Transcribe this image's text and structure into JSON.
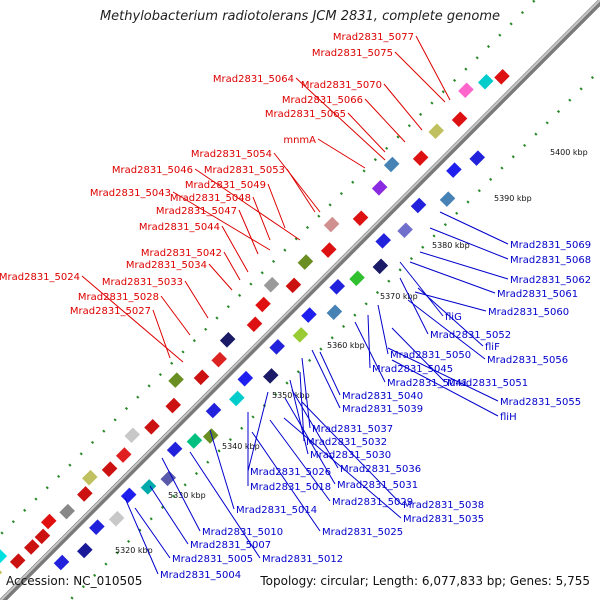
{
  "title": "Methylobacterium radiotolerans JCM 2831, complete genome",
  "accession": "Accession: NC_010505",
  "summary": "Topology: circular; Length: 6,077,833 bp; Genes: 5,755",
  "colors": {
    "forward_label": "#dd0000",
    "reverse_label": "#0000cc",
    "backbone": "#909090",
    "tick": "#228822"
  },
  "kbp_ticks": [
    "5320 kbp",
    "5330 kbp",
    "5340 kbp",
    "5350 kbp",
    "5360 kbp",
    "5370 kbp",
    "5380 kbp",
    "5390 kbp",
    "5400 kbp"
  ],
  "forward_genes": [
    "Mrad2831_5077",
    "Mrad2831_5075",
    "Mrad2831_5064",
    "Mrad2831_5070",
    "Mrad2831_5066",
    "Mrad2831_5065",
    "mnmA",
    "Mrad2831_5054",
    "Mrad2831_5046",
    "Mrad2831_5053",
    "Mrad2831_5049",
    "Mrad2831_5043",
    "Mrad2831_5048",
    "Mrad2831_5047",
    "Mrad2831_5044",
    "Mrad2831_5042",
    "Mrad2831_5034",
    "Mrad2831_5024",
    "Mrad2831_5033",
    "Mrad2831_5028",
    "Mrad2831_5027"
  ],
  "reverse_genes": [
    "Mrad2831_5069",
    "Mrad2831_5068",
    "Mrad2831_5062",
    "Mrad2831_5061",
    "fliG",
    "Mrad2831_5060",
    "Mrad2831_5052",
    "fliF",
    "Mrad2831_5056",
    "Mrad2831_5050",
    "Mrad2831_5045",
    "Mrad2831_5041",
    "Mrad2831_5051",
    "Mrad2831_5040",
    "Mrad2831_5039",
    "Mrad2831_5055",
    "fliH",
    "Mrad2831_5037",
    "Mrad2831_5032",
    "Mrad2831_5030",
    "Mrad2831_5026",
    "Mrad2831_5036",
    "Mrad2831_5018",
    "Mrad2831_5031",
    "Mrad2831_5014",
    "Mrad2831_5029",
    "Mrad2831_5038",
    "Mrad2831_5035",
    "Mrad2831_5010",
    "Mrad2831_5025",
    "Mrad2831_5007",
    "Mrad2831_5005",
    "Mrad2831_5012",
    "Mrad2831_5004"
  ]
}
